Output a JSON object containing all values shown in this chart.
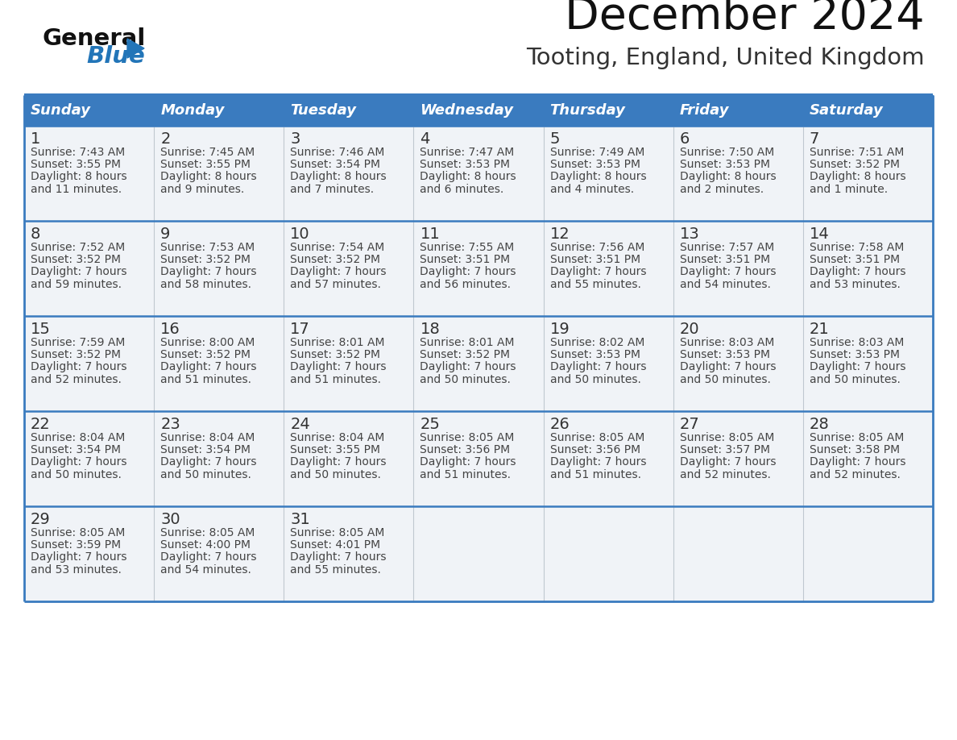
{
  "title": "December 2024",
  "subtitle": "Tooting, England, United Kingdom",
  "header_bg_color": "#3a7bbf",
  "header_text_color": "#ffffff",
  "cell_bg_odd": "#f0f4f8",
  "cell_bg_even": "#f0f4f8",
  "cell_text_color": "#444444",
  "border_color": "#3a7bbf",
  "row_sep_color": "#3a7bbf",
  "col_sep_color": "#c0c8d0",
  "day_headers": [
    "Sunday",
    "Monday",
    "Tuesday",
    "Wednesday",
    "Thursday",
    "Friday",
    "Saturday"
  ],
  "weeks": [
    [
      {
        "day": "1",
        "sunrise": "7:43 AM",
        "sunset": "3:55 PM",
        "daylight_h": "8 hours",
        "daylight_m": "and 11 minutes."
      },
      {
        "day": "2",
        "sunrise": "7:45 AM",
        "sunset": "3:55 PM",
        "daylight_h": "8 hours",
        "daylight_m": "and 9 minutes."
      },
      {
        "day": "3",
        "sunrise": "7:46 AM",
        "sunset": "3:54 PM",
        "daylight_h": "8 hours",
        "daylight_m": "and 7 minutes."
      },
      {
        "day": "4",
        "sunrise": "7:47 AM",
        "sunset": "3:53 PM",
        "daylight_h": "8 hours",
        "daylight_m": "and 6 minutes."
      },
      {
        "day": "5",
        "sunrise": "7:49 AM",
        "sunset": "3:53 PM",
        "daylight_h": "8 hours",
        "daylight_m": "and 4 minutes."
      },
      {
        "day": "6",
        "sunrise": "7:50 AM",
        "sunset": "3:53 PM",
        "daylight_h": "8 hours",
        "daylight_m": "and 2 minutes."
      },
      {
        "day": "7",
        "sunrise": "7:51 AM",
        "sunset": "3:52 PM",
        "daylight_h": "8 hours",
        "daylight_m": "and 1 minute."
      }
    ],
    [
      {
        "day": "8",
        "sunrise": "7:52 AM",
        "sunset": "3:52 PM",
        "daylight_h": "7 hours",
        "daylight_m": "and 59 minutes."
      },
      {
        "day": "9",
        "sunrise": "7:53 AM",
        "sunset": "3:52 PM",
        "daylight_h": "7 hours",
        "daylight_m": "and 58 minutes."
      },
      {
        "day": "10",
        "sunrise": "7:54 AM",
        "sunset": "3:52 PM",
        "daylight_h": "7 hours",
        "daylight_m": "and 57 minutes."
      },
      {
        "day": "11",
        "sunrise": "7:55 AM",
        "sunset": "3:51 PM",
        "daylight_h": "7 hours",
        "daylight_m": "and 56 minutes."
      },
      {
        "day": "12",
        "sunrise": "7:56 AM",
        "sunset": "3:51 PM",
        "daylight_h": "7 hours",
        "daylight_m": "and 55 minutes."
      },
      {
        "day": "13",
        "sunrise": "7:57 AM",
        "sunset": "3:51 PM",
        "daylight_h": "7 hours",
        "daylight_m": "and 54 minutes."
      },
      {
        "day": "14",
        "sunrise": "7:58 AM",
        "sunset": "3:51 PM",
        "daylight_h": "7 hours",
        "daylight_m": "and 53 minutes."
      }
    ],
    [
      {
        "day": "15",
        "sunrise": "7:59 AM",
        "sunset": "3:52 PM",
        "daylight_h": "7 hours",
        "daylight_m": "and 52 minutes."
      },
      {
        "day": "16",
        "sunrise": "8:00 AM",
        "sunset": "3:52 PM",
        "daylight_h": "7 hours",
        "daylight_m": "and 51 minutes."
      },
      {
        "day": "17",
        "sunrise": "8:01 AM",
        "sunset": "3:52 PM",
        "daylight_h": "7 hours",
        "daylight_m": "and 51 minutes."
      },
      {
        "day": "18",
        "sunrise": "8:01 AM",
        "sunset": "3:52 PM",
        "daylight_h": "7 hours",
        "daylight_m": "and 50 minutes."
      },
      {
        "day": "19",
        "sunrise": "8:02 AM",
        "sunset": "3:53 PM",
        "daylight_h": "7 hours",
        "daylight_m": "and 50 minutes."
      },
      {
        "day": "20",
        "sunrise": "8:03 AM",
        "sunset": "3:53 PM",
        "daylight_h": "7 hours",
        "daylight_m": "and 50 minutes."
      },
      {
        "day": "21",
        "sunrise": "8:03 AM",
        "sunset": "3:53 PM",
        "daylight_h": "7 hours",
        "daylight_m": "and 50 minutes."
      }
    ],
    [
      {
        "day": "22",
        "sunrise": "8:04 AM",
        "sunset": "3:54 PM",
        "daylight_h": "7 hours",
        "daylight_m": "and 50 minutes."
      },
      {
        "day": "23",
        "sunrise": "8:04 AM",
        "sunset": "3:54 PM",
        "daylight_h": "7 hours",
        "daylight_m": "and 50 minutes."
      },
      {
        "day": "24",
        "sunrise": "8:04 AM",
        "sunset": "3:55 PM",
        "daylight_h": "7 hours",
        "daylight_m": "and 50 minutes."
      },
      {
        "day": "25",
        "sunrise": "8:05 AM",
        "sunset": "3:56 PM",
        "daylight_h": "7 hours",
        "daylight_m": "and 51 minutes."
      },
      {
        "day": "26",
        "sunrise": "8:05 AM",
        "sunset": "3:56 PM",
        "daylight_h": "7 hours",
        "daylight_m": "and 51 minutes."
      },
      {
        "day": "27",
        "sunrise": "8:05 AM",
        "sunset": "3:57 PM",
        "daylight_h": "7 hours",
        "daylight_m": "and 52 minutes."
      },
      {
        "day": "28",
        "sunrise": "8:05 AM",
        "sunset": "3:58 PM",
        "daylight_h": "7 hours",
        "daylight_m": "and 52 minutes."
      }
    ],
    [
      {
        "day": "29",
        "sunrise": "8:05 AM",
        "sunset": "3:59 PM",
        "daylight_h": "7 hours",
        "daylight_m": "and 53 minutes."
      },
      {
        "day": "30",
        "sunrise": "8:05 AM",
        "sunset": "4:00 PM",
        "daylight_h": "7 hours",
        "daylight_m": "and 54 minutes."
      },
      {
        "day": "31",
        "sunrise": "8:05 AM",
        "sunset": "4:01 PM",
        "daylight_h": "7 hours",
        "daylight_m": "and 55 minutes."
      },
      null,
      null,
      null,
      null
    ]
  ],
  "logo_general_color": "#111111",
  "logo_blue_color": "#2275b8",
  "logo_triangle_color": "#2275b8"
}
